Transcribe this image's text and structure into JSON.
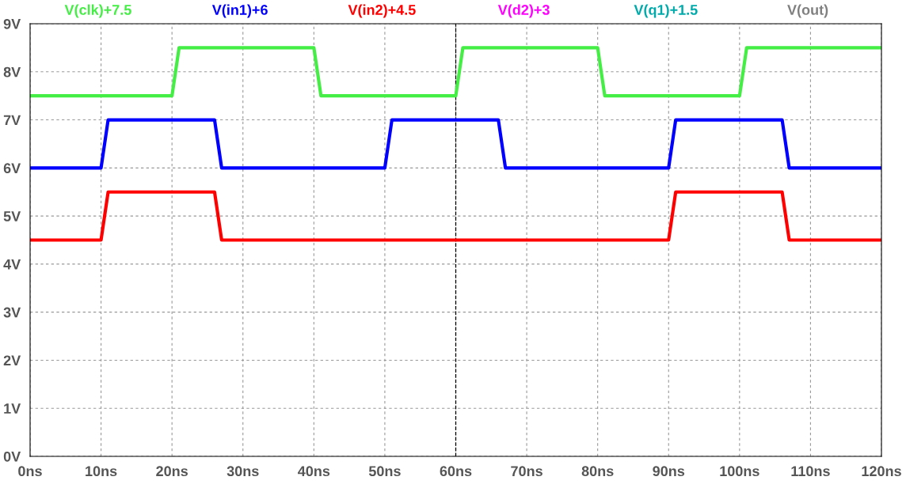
{
  "chart_data": {
    "type": "line",
    "xlim": [
      0,
      120
    ],
    "xticks": [
      {
        "value": 0,
        "label": "0ns"
      },
      {
        "value": 10,
        "label": "10ns"
      },
      {
        "value": 20,
        "label": "20ns"
      },
      {
        "value": 30,
        "label": "30ns"
      },
      {
        "value": 40,
        "label": "40ns"
      },
      {
        "value": 50,
        "label": "50ns"
      },
      {
        "value": 60,
        "label": "60ns"
      },
      {
        "value": 70,
        "label": "70ns"
      },
      {
        "value": 80,
        "label": "80ns"
      },
      {
        "value": 90,
        "label": "90ns"
      },
      {
        "value": 100,
        "label": "100ns"
      },
      {
        "value": 110,
        "label": "110ns"
      },
      {
        "value": 120,
        "label": "120ns"
      }
    ],
    "ylim": [
      0,
      9
    ],
    "yticks": [
      {
        "value": 0,
        "label": "0V"
      },
      {
        "value": 1,
        "label": "1V"
      },
      {
        "value": 2,
        "label": "2V"
      },
      {
        "value": 3,
        "label": "3V"
      },
      {
        "value": 4,
        "label": "4V"
      },
      {
        "value": 5,
        "label": "5V"
      },
      {
        "value": 6,
        "label": "6V"
      },
      {
        "value": 7,
        "label": "7V"
      },
      {
        "value": 8,
        "label": "8V"
      },
      {
        "value": 9,
        "label": "9V"
      }
    ],
    "grid": true,
    "legend": "top",
    "line_style": "solid",
    "ref_lines": [
      {
        "axis": "x",
        "value": 60,
        "color": "#000000",
        "line_style": "dashed"
      }
    ],
    "series": [
      {
        "name": "V(clk)+7.5",
        "color": "#44ee44",
        "x": [
          0,
          20,
          21,
          40,
          41,
          60,
          61,
          80,
          81,
          100,
          101,
          120
        ],
        "values": [
          7.5,
          7.5,
          8.5,
          8.5,
          7.5,
          7.5,
          8.5,
          8.5,
          7.5,
          7.5,
          8.5,
          8.5
        ]
      },
      {
        "name": "V(in1)+6",
        "color": "#0000ff",
        "x": [
          0,
          10,
          11,
          26,
          27,
          50,
          51,
          66,
          67,
          90,
          91,
          106,
          107,
          120
        ],
        "values": [
          6,
          6,
          7,
          7,
          6,
          6,
          7,
          7,
          6,
          6,
          7,
          7,
          6,
          6
        ]
      },
      {
        "name": "V(in2)+4.5",
        "color": "#ff0000",
        "x": [
          0,
          10,
          11,
          26,
          27,
          90,
          91,
          106,
          107,
          120
        ],
        "values": [
          4.5,
          4.5,
          5.5,
          5.5,
          4.5,
          4.5,
          5.5,
          5.5,
          4.5,
          4.5
        ]
      },
      {
        "name": "V(d2)+3",
        "color": "#ff00ff"
      },
      {
        "name": "V(q1)+1.5",
        "color": "#00aaaa"
      },
      {
        "name": "V(out)",
        "color": "#808080"
      }
    ]
  }
}
